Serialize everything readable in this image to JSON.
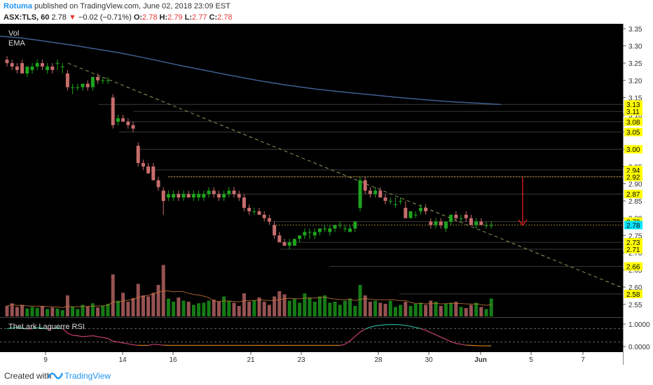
{
  "header": {
    "author": "Rotuma",
    "published": "published on TradingView.com, June 02, 2018 23:09 EST",
    "symbol": "ASX:TLS, 60",
    "arrow": "▼",
    "change": "−0.02 (−0.71%)",
    "last_price": "2.78",
    "o_label": "O:",
    "o_val": "2.78",
    "h_label": "H:",
    "h_val": "2.79",
    "l_label": "L:",
    "l_val": "2.77",
    "c_label": "C:",
    "c_val": "2.78"
  },
  "footer": {
    "created": "Created with",
    "brand": "TradingView"
  },
  "colors": {
    "background": "#000000",
    "bull": "#1ea41e",
    "bear": "#c86d6d",
    "ema": "#3f5f8f",
    "label_bg": "#ffff00",
    "current_label_bg": "#00e5ff",
    "trendline": "#8a9a5b",
    "arrow": "#e02020",
    "rsi": "#c8406a",
    "rsi_low": "#d2801e",
    "rsi_high": "#2bb59a"
  },
  "chart_data": {
    "type": "candlestick",
    "legend": [
      "Vol",
      "EMA"
    ],
    "ylim": [
      2.515,
      3.36
    ],
    "y_ticks": [
      "3.35",
      "3.30",
      "3.25",
      "3.20",
      "3.15",
      "3.10",
      "3.05",
      "3.00",
      "2.95",
      "2.90",
      "2.85",
      "2.80",
      "2.75",
      "2.70",
      "2.65",
      "2.60",
      "2.55"
    ],
    "x_ticks": [
      "9",
      "14",
      "16",
      "21",
      "23",
      "28",
      "30",
      "Jun",
      "5",
      "7"
    ],
    "level_labels": [
      "3.13",
      "3.11",
      "3.08",
      "3.05",
      "3.00",
      "2.94",
      "2.92",
      "2.87",
      "2.79",
      "2.73",
      "2.71",
      "2.66",
      "2.58"
    ],
    "current_price_label": "2.78",
    "candles": [
      [
        3.26,
        3.27,
        3.24,
        3.25
      ],
      [
        3.25,
        3.26,
        3.23,
        3.24
      ],
      [
        3.24,
        3.25,
        3.22,
        3.23
      ],
      [
        3.25,
        3.26,
        3.22,
        3.22
      ],
      [
        3.22,
        3.24,
        3.21,
        3.24
      ],
      [
        3.23,
        3.25,
        3.22,
        3.24
      ],
      [
        3.24,
        3.26,
        3.23,
        3.25
      ],
      [
        3.25,
        3.26,
        3.23,
        3.24
      ],
      [
        3.23,
        3.25,
        3.22,
        3.24
      ],
      [
        3.24,
        3.25,
        3.22,
        3.23
      ],
      [
        3.25,
        3.26,
        3.23,
        3.25
      ],
      [
        3.24,
        3.25,
        3.22,
        3.24
      ],
      [
        3.22,
        3.23,
        3.17,
        3.18
      ],
      [
        3.18,
        3.19,
        3.16,
        3.18
      ],
      [
        3.18,
        3.19,
        3.17,
        3.18
      ],
      [
        3.18,
        3.19,
        3.17,
        3.19
      ],
      [
        3.19,
        3.2,
        3.17,
        3.18
      ],
      [
        3.18,
        3.21,
        3.17,
        3.21
      ],
      [
        3.21,
        3.22,
        3.19,
        3.2
      ],
      [
        3.2,
        3.21,
        3.19,
        3.2
      ],
      [
        3.2,
        3.21,
        3.19,
        3.2
      ],
      [
        3.15,
        3.16,
        3.06,
        3.07
      ],
      [
        3.08,
        3.1,
        3.07,
        3.09
      ],
      [
        3.09,
        3.1,
        3.08,
        3.08
      ],
      [
        3.08,
        3.09,
        3.06,
        3.07
      ],
      [
        3.07,
        3.08,
        3.05,
        3.06
      ],
      [
        3.01,
        3.02,
        2.95,
        2.96
      ],
      [
        2.96,
        2.97,
        2.94,
        2.95
      ],
      [
        2.95,
        2.96,
        2.93,
        2.93
      ],
      [
        2.95,
        2.96,
        2.91,
        2.91
      ],
      [
        2.91,
        2.92,
        2.88,
        2.89
      ],
      [
        2.88,
        2.89,
        2.81,
        2.85
      ],
      [
        2.86,
        2.88,
        2.85,
        2.87
      ],
      [
        2.86,
        2.88,
        2.85,
        2.87
      ],
      [
        2.87,
        2.88,
        2.85,
        2.86
      ],
      [
        2.86,
        2.88,
        2.85,
        2.87
      ],
      [
        2.87,
        2.88,
        2.86,
        2.86
      ],
      [
        2.86,
        2.88,
        2.85,
        2.87
      ],
      [
        2.86,
        2.88,
        2.85,
        2.87
      ],
      [
        2.86,
        2.88,
        2.85,
        2.87
      ],
      [
        2.87,
        2.89,
        2.86,
        2.88
      ],
      [
        2.88,
        2.89,
        2.86,
        2.87
      ],
      [
        2.87,
        2.88,
        2.85,
        2.86
      ],
      [
        2.86,
        2.88,
        2.85,
        2.87
      ],
      [
        2.87,
        2.89,
        2.86,
        2.88
      ],
      [
        2.88,
        2.89,
        2.86,
        2.87
      ],
      [
        2.87,
        2.88,
        2.85,
        2.86
      ],
      [
        2.86,
        2.87,
        2.82,
        2.83
      ],
      [
        2.83,
        2.84,
        2.81,
        2.82
      ],
      [
        2.82,
        2.83,
        2.81,
        2.82
      ],
      [
        2.82,
        2.83,
        2.81,
        2.81
      ],
      [
        2.81,
        2.82,
        2.79,
        2.8
      ],
      [
        2.8,
        2.81,
        2.78,
        2.79
      ],
      [
        2.78,
        2.79,
        2.74,
        2.75
      ],
      [
        2.75,
        2.76,
        2.73,
        2.73
      ],
      [
        2.73,
        2.74,
        2.72,
        2.72
      ],
      [
        2.72,
        2.74,
        2.71,
        2.73
      ],
      [
        2.72,
        2.74,
        2.72,
        2.74
      ],
      [
        2.74,
        2.75,
        2.73,
        2.75
      ],
      [
        2.75,
        2.77,
        2.74,
        2.76
      ],
      [
        2.76,
        2.77,
        2.74,
        2.76
      ],
      [
        2.75,
        2.77,
        2.74,
        2.76
      ],
      [
        2.76,
        2.77,
        2.75,
        2.77
      ],
      [
        2.77,
        2.78,
        2.76,
        2.77
      ],
      [
        2.76,
        2.78,
        2.75,
        2.77
      ],
      [
        2.77,
        2.78,
        2.76,
        2.78
      ],
      [
        2.78,
        2.79,
        2.77,
        2.78
      ],
      [
        2.77,
        2.78,
        2.76,
        2.77
      ],
      [
        2.76,
        2.78,
        2.76,
        2.77
      ],
      [
        2.77,
        2.79,
        2.76,
        2.79
      ],
      [
        2.83,
        2.92,
        2.82,
        2.91
      ],
      [
        2.91,
        2.92,
        2.87,
        2.88
      ],
      [
        2.88,
        2.89,
        2.86,
        2.87
      ],
      [
        2.87,
        2.89,
        2.86,
        2.88
      ],
      [
        2.88,
        2.89,
        2.86,
        2.86
      ],
      [
        2.86,
        2.87,
        2.84,
        2.85
      ],
      [
        2.85,
        2.86,
        2.84,
        2.85
      ],
      [
        2.84,
        2.86,
        2.83,
        2.84
      ],
      [
        2.85,
        2.86,
        2.84,
        2.85
      ],
      [
        2.83,
        2.85,
        2.8,
        2.8
      ],
      [
        2.8,
        2.82,
        2.8,
        2.82
      ],
      [
        2.81,
        2.82,
        2.8,
        2.81
      ],
      [
        2.82,
        2.84,
        2.81,
        2.83
      ],
      [
        2.83,
        2.84,
        2.81,
        2.82
      ],
      [
        2.79,
        2.8,
        2.77,
        2.78
      ],
      [
        2.78,
        2.8,
        2.77,
        2.79
      ],
      [
        2.79,
        2.8,
        2.77,
        2.78
      ],
      [
        2.77,
        2.79,
        2.76,
        2.79
      ],
      [
        2.79,
        2.81,
        2.78,
        2.81
      ],
      [
        2.81,
        2.82,
        2.79,
        2.8
      ],
      [
        2.8,
        2.81,
        2.79,
        2.8
      ],
      [
        2.81,
        2.82,
        2.79,
        2.8
      ],
      [
        2.8,
        2.81,
        2.78,
        2.78
      ],
      [
        2.78,
        2.8,
        2.77,
        2.79
      ],
      [
        2.79,
        2.8,
        2.78,
        2.78
      ],
      [
        2.78,
        2.79,
        2.77,
        2.78
      ],
      [
        2.78,
        2.79,
        2.77,
        2.78
      ]
    ],
    "volume": [
      20,
      25,
      18,
      22,
      15,
      18,
      16,
      20,
      14,
      17,
      15,
      12,
      40,
      18,
      14,
      22,
      19,
      25,
      17,
      20,
      24,
      80,
      30,
      45,
      28,
      35,
      62,
      40,
      38,
      45,
      60,
      98,
      34,
      28,
      36,
      30,
      28,
      22,
      25,
      26,
      30,
      32,
      28,
      38,
      30,
      26,
      20,
      44,
      28,
      30,
      36,
      28,
      22,
      38,
      48,
      42,
      30,
      34,
      26,
      44,
      36,
      28,
      38,
      40,
      26,
      28,
      22,
      30,
      34,
      20,
      60,
      40,
      28,
      30,
      26,
      24,
      30,
      18,
      22,
      28,
      20,
      24,
      26,
      22,
      30,
      28,
      20,
      24,
      26,
      28,
      18,
      16,
      22,
      26,
      18,
      14,
      34
    ],
    "ema": [
      [
        0,
        3.328
      ],
      [
        30,
        3.323
      ],
      [
        60,
        3.315
      ],
      [
        90,
        3.306
      ],
      [
        110,
        3.3
      ],
      [
        140,
        3.29
      ],
      [
        170,
        3.28
      ],
      [
        200,
        3.268
      ],
      [
        230,
        3.255
      ],
      [
        260,
        3.242
      ],
      [
        290,
        3.23
      ],
      [
        330,
        3.214
      ],
      [
        370,
        3.199
      ],
      [
        410,
        3.186
      ],
      [
        450,
        3.175
      ],
      [
        490,
        3.166
      ],
      [
        530,
        3.158
      ],
      [
        570,
        3.15
      ],
      [
        610,
        3.143
      ],
      [
        650,
        3.137
      ],
      [
        690,
        3.133
      ],
      [
        715,
        3.13
      ]
    ],
    "trendline": [
      [
        97,
        3.25
      ],
      [
        886,
        2.6
      ]
    ],
    "rsi": {
      "name": "TheLark Laguerre RSI",
      "y_ticks": [
        "1.0000",
        "0.0000"
      ],
      "values": [
        0.8,
        0.82,
        0.85,
        0.82,
        0.78,
        0.8,
        0.84,
        0.82,
        0.78,
        0.8,
        0.83,
        0.8,
        0.6,
        0.5,
        0.48,
        0.44,
        0.46,
        0.48,
        0.44,
        0.4,
        0.36,
        0.24,
        0.2,
        0.16,
        0.12,
        0.08,
        0.05,
        0.05,
        0.05,
        0.1,
        0.08,
        0.06,
        0.05,
        0.05,
        0.05,
        0.05,
        0.05,
        0.05,
        0.05,
        0.05,
        0.05,
        0.05,
        0.05,
        0.05,
        0.05,
        0.05,
        0.05,
        0.05,
        0.05,
        0.05,
        0.05,
        0.05,
        0.05,
        0.05,
        0.05,
        0.05,
        0.05,
        0.05,
        0.05,
        0.05,
        0.05,
        0.05,
        0.05,
        0.05,
        0.05,
        0.05,
        0.05,
        0.1,
        0.25,
        0.45,
        0.65,
        0.78,
        0.86,
        0.92,
        0.95,
        0.97,
        0.98,
        0.98,
        0.97,
        0.94,
        0.9,
        0.85,
        0.8,
        0.72,
        0.62,
        0.52,
        0.42,
        0.32,
        0.22,
        0.14,
        0.1,
        0.06,
        0.05,
        0.04,
        0.03,
        0.03,
        0.03
      ]
    }
  }
}
